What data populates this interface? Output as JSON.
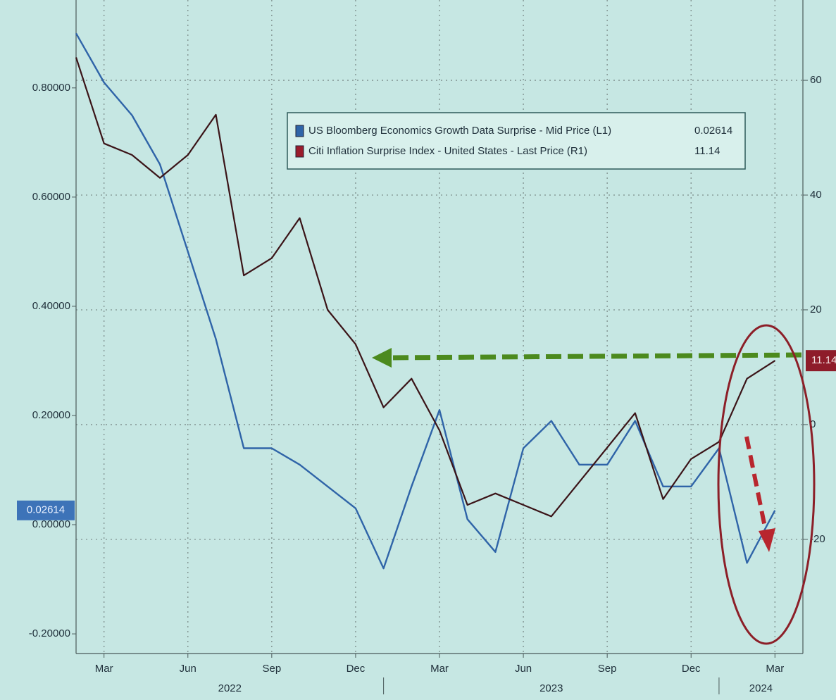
{
  "chart_data": {
    "type": "line",
    "x": [
      "2022-02",
      "2022-03",
      "2022-04",
      "2022-05",
      "2022-06",
      "2022-07",
      "2022-08",
      "2022-09",
      "2022-10",
      "2022-11",
      "2022-12",
      "2023-01",
      "2023-02",
      "2023-03",
      "2023-04",
      "2023-05",
      "2023-06",
      "2023-07",
      "2023-08",
      "2023-09",
      "2023-10",
      "2023-11",
      "2023-12",
      "2024-01",
      "2024-02",
      "2024-03"
    ],
    "series": [
      {
        "name": "US Bloomberg Economics Growth Data Surprise - Mid Price (L1)",
        "color": "#2f64a8",
        "values": [
          0.9,
          0.81,
          0.75,
          0.66,
          0.5,
          0.34,
          0.14,
          0.14,
          0.11,
          0.07,
          0.03,
          -0.08,
          0.07,
          0.21,
          0.01,
          -0.05,
          0.14,
          0.19,
          0.11,
          0.11,
          0.19,
          0.07,
          0.07,
          0.14,
          -0.07,
          0.02614
        ]
      },
      {
        "name": "Citi Inflation Surprise Index - United States - Last Price (R1)",
        "color": "#3b1418",
        "axis": "y2",
        "values": [
          64,
          49,
          47,
          43,
          47,
          54,
          26,
          29,
          36,
          20,
          14,
          3,
          8,
          -1,
          -14,
          -12,
          -14,
          -16,
          -10,
          -4,
          2,
          -13,
          -6,
          -3,
          8,
          11.14
        ]
      }
    ],
    "xlim": [
      "2022-02",
      "2024-04"
    ],
    "xticks": [
      {
        "value": "2022-03",
        "label": "Mar"
      },
      {
        "value": "2022-06",
        "label": "Jun"
      },
      {
        "value": "2022-09",
        "label": "Sep"
      },
      {
        "value": "2022-12",
        "label": "Dec"
      },
      {
        "value": "2023-03",
        "label": "Mar"
      },
      {
        "value": "2023-06",
        "label": "Jun"
      },
      {
        "value": "2023-09",
        "label": "Sep"
      },
      {
        "value": "2023-12",
        "label": "Dec"
      },
      {
        "value": "2024-03",
        "label": "Mar"
      }
    ],
    "years": [
      "2022",
      "2023",
      "2024"
    ],
    "ylim": [
      -0.236,
      0.961
    ],
    "yticks": [
      {
        "value": -0.2,
        "label": "-0.20000"
      },
      {
        "value": 0,
        "label": "0.00000"
      },
      {
        "value": 0.2,
        "label": "0.20000"
      },
      {
        "value": 0.4,
        "label": "0.40000"
      },
      {
        "value": 0.6,
        "label": "0.60000"
      },
      {
        "value": 0.8,
        "label": "0.80000"
      }
    ],
    "y2lim": [
      -39.9,
      74
    ],
    "y2ticks": [
      -20,
      0,
      20,
      40,
      60
    ],
    "grid": true,
    "legend": "top"
  }
}
